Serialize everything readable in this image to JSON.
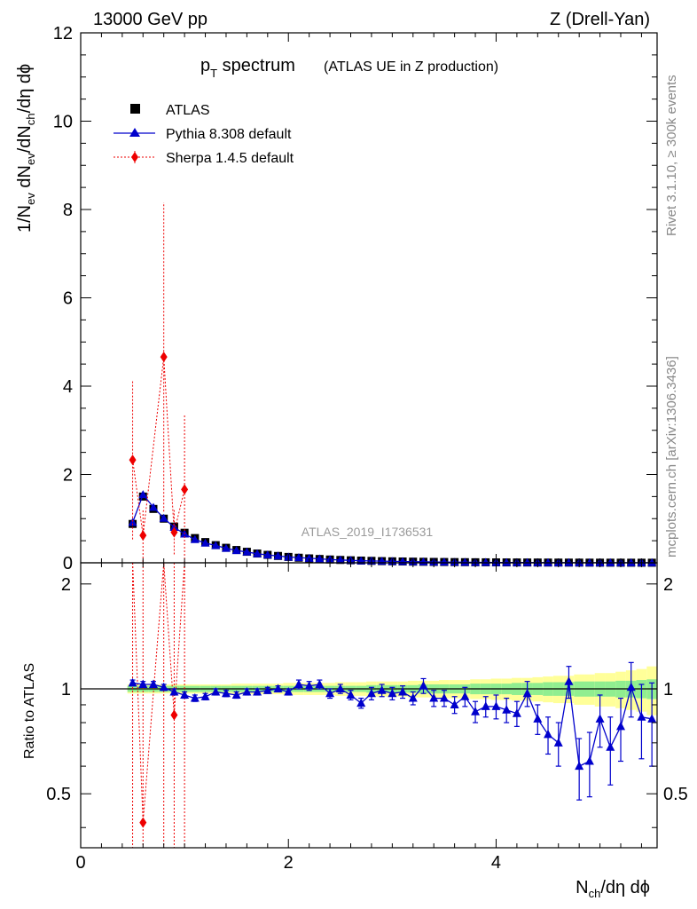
{
  "header": {
    "energy": "13000 GeV pp",
    "process": "Z (Drell-Yan)"
  },
  "side": {
    "rivet": "Rivet 3.1.10, ≥ 300k events",
    "mcplots": "mcplots.cern.ch [arXiv:1306.3436]"
  },
  "watermark": "ATLAS_2019_I1736531",
  "colors": {
    "atlas": "#000000",
    "pythia": "#0000cc",
    "sherpa": "#ee0000",
    "band_inner": "#90ee90",
    "band_outer": "#ffff99"
  },
  "chart_data": {
    "type": "line",
    "title_main": "p",
    "title_sub": "T",
    "title_rest": " spectrum",
    "title_note": "(ATLAS UE in Z production)",
    "xlabel": {
      "base": "N",
      "sub": "ch",
      "rest": "/dη dϕ"
    },
    "ylabel": {
      "p1": "1/N",
      "s1": "ev",
      "p2": " dN",
      "s2": "ev",
      "p3": "/dN",
      "s3": "ch",
      "p4": "/dη dϕ"
    },
    "ratio_ylabel": "Ratio to ATLAS",
    "xlim": [
      0,
      5.55
    ],
    "ylim": [
      0,
      12
    ],
    "ratio_ylim": [
      0.35,
      2.3
    ],
    "x_ticks": [
      "0",
      "2",
      "4"
    ],
    "y_ticks": [
      "0",
      "2",
      "4",
      "6",
      "8",
      "10",
      "12"
    ],
    "ratio_ticks": [
      "0.5",
      "1",
      "2"
    ],
    "legend": [
      "ATLAS",
      "Pythia 8.308 default",
      "Sherpa 1.4.5 default"
    ],
    "x": [
      0.5,
      0.6,
      0.7,
      0.8,
      0.9,
      1.0,
      1.1,
      1.2,
      1.3,
      1.4,
      1.5,
      1.6,
      1.7,
      1.8,
      1.9,
      2.0,
      2.1,
      2.2,
      2.3,
      2.4,
      2.5,
      2.6,
      2.7,
      2.8,
      2.9,
      3.0,
      3.1,
      3.2,
      3.3,
      3.4,
      3.5,
      3.6,
      3.7,
      3.8,
      3.9,
      4.0,
      4.1,
      4.2,
      4.3,
      4.4,
      4.5,
      4.6,
      4.7,
      4.8,
      4.9,
      5.0,
      5.1,
      5.2,
      5.3,
      5.4,
      5.5
    ],
    "series": [
      {
        "name": "ATLAS",
        "values": [
          0.88,
          1.5,
          1.22,
          1.0,
          0.82,
          0.68,
          0.56,
          0.47,
          0.4,
          0.34,
          0.29,
          0.25,
          0.21,
          0.18,
          0.155,
          0.133,
          0.115,
          0.1,
          0.087,
          0.075,
          0.065,
          0.057,
          0.05,
          0.044,
          0.038,
          0.034,
          0.03,
          0.026,
          0.023,
          0.02,
          0.018,
          0.016,
          0.014,
          0.0125,
          0.011,
          0.0098,
          0.0087,
          0.0077,
          0.0069,
          0.0061,
          0.0054,
          0.0048,
          0.0043,
          0.0038,
          0.0034,
          0.003,
          0.0027,
          0.0024,
          0.0021,
          0.0019,
          0.0017
        ],
        "band_inner": [
          0.02,
          0.02,
          0.02,
          0.02,
          0.02,
          0.02,
          0.02,
          0.02,
          0.02,
          0.02,
          0.02,
          0.02,
          0.02,
          0.02,
          0.02,
          0.02,
          0.02,
          0.02,
          0.02,
          0.02,
          0.02,
          0.02,
          0.02,
          0.025,
          0.025,
          0.025,
          0.025,
          0.025,
          0.03,
          0.03,
          0.03,
          0.03,
          0.03,
          0.035,
          0.035,
          0.035,
          0.035,
          0.04,
          0.04,
          0.04,
          0.045,
          0.045,
          0.045,
          0.05,
          0.05,
          0.05,
          0.05,
          0.055,
          0.055,
          0.06,
          0.065
        ],
        "band_outer": [
          0.03,
          0.03,
          0.03,
          0.03,
          0.03,
          0.03,
          0.03,
          0.03,
          0.03,
          0.03,
          0.035,
          0.035,
          0.035,
          0.035,
          0.035,
          0.04,
          0.04,
          0.04,
          0.04,
          0.04,
          0.045,
          0.045,
          0.045,
          0.05,
          0.05,
          0.05,
          0.05,
          0.055,
          0.055,
          0.055,
          0.06,
          0.06,
          0.06,
          0.065,
          0.065,
          0.07,
          0.07,
          0.075,
          0.075,
          0.08,
          0.085,
          0.09,
          0.09,
          0.1,
          0.1,
          0.11,
          0.11,
          0.12,
          0.13,
          0.14,
          0.16
        ]
      },
      {
        "name": "Pythia 8.308 default",
        "ratio": [
          1.04,
          1.03,
          1.03,
          1.01,
          0.98,
          0.96,
          0.94,
          0.95,
          0.98,
          0.97,
          0.96,
          0.98,
          0.98,
          0.99,
          1.0,
          0.98,
          1.03,
          1.02,
          1.03,
          0.97,
          1.0,
          0.96,
          0.91,
          0.97,
          0.99,
          0.97,
          0.98,
          0.94,
          1.02,
          0.94,
          0.94,
          0.9,
          0.95,
          0.86,
          0.89,
          0.89,
          0.87,
          0.85,
          0.97,
          0.82,
          0.74,
          0.7,
          1.05,
          0.6,
          0.62,
          0.82,
          0.68,
          0.78,
          1.01,
          0.83,
          0.82
        ],
        "ratio_err": [
          0.02,
          0.02,
          0.02,
          0.02,
          0.02,
          0.02,
          0.02,
          0.02,
          0.02,
          0.02,
          0.02,
          0.02,
          0.02,
          0.02,
          0.02,
          0.02,
          0.03,
          0.03,
          0.03,
          0.03,
          0.03,
          0.03,
          0.03,
          0.04,
          0.04,
          0.04,
          0.04,
          0.04,
          0.05,
          0.05,
          0.05,
          0.05,
          0.06,
          0.06,
          0.06,
          0.07,
          0.07,
          0.07,
          0.08,
          0.08,
          0.09,
          0.1,
          0.11,
          0.12,
          0.13,
          0.14,
          0.15,
          0.16,
          0.18,
          0.2,
          0.22
        ]
      },
      {
        "name": "Sherpa 1.4.5 default",
        "x": [
          0.5,
          0.6,
          0.8,
          0.9,
          1.0
        ],
        "values": [
          2.33,
          0.62,
          4.66,
          0.69,
          1.66
        ],
        "err": [
          1.8,
          0.6,
          3.5,
          0.5,
          1.7
        ],
        "ratio_x": [
          0.9
        ],
        "ratio": [
          0.84
        ]
      }
    ]
  }
}
